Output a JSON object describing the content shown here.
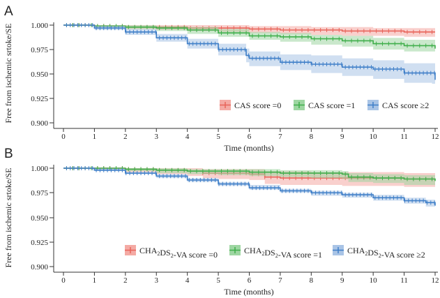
{
  "chart_data": [
    {
      "type": "line",
      "panel_label": "A",
      "xlabel": "Time (months)",
      "ylabel": "Free from ischemic srtoke/SE",
      "xlim": [
        0,
        12
      ],
      "ylim": [
        0.9,
        1.0
      ],
      "x_ticks": [
        "0",
        "1",
        "2",
        "3",
        "4",
        "5",
        "6",
        "7",
        "8",
        "9",
        "10",
        "11",
        "12"
      ],
      "y_ticks": [
        "0.900",
        "0.925",
        "0.950",
        "0.975",
        "1.000"
      ],
      "grid": false,
      "legend_placement": "bottom-right",
      "series": [
        {
          "name": "CAS score =0",
          "color": "#e8645a",
          "band_color": "#f4aaa4",
          "x": [
            0,
            1,
            2,
            3,
            4,
            5,
            6,
            7,
            8,
            9,
            10,
            11,
            12
          ],
          "y": [
            1.0,
            0.999,
            0.998,
            0.998,
            0.997,
            0.997,
            0.996,
            0.995,
            0.995,
            0.994,
            0.994,
            0.993,
            0.993
          ],
          "lower": [
            1.0,
            0.998,
            0.996,
            0.995,
            0.994,
            0.993,
            0.992,
            0.991,
            0.99,
            0.989,
            0.989,
            0.988,
            0.988
          ],
          "upper": [
            1.0,
            1.0,
            1.0,
            1.0,
            1.0,
            1.0,
            0.999,
            0.999,
            0.998,
            0.998,
            0.997,
            0.997,
            0.997
          ]
        },
        {
          "name": "CAS score =1",
          "color": "#3fae4a",
          "band_color": "#9ed6a2",
          "x": [
            0,
            1,
            2,
            3,
            4,
            5,
            6,
            7,
            8,
            9,
            10,
            11,
            12
          ],
          "y": [
            1.0,
            0.999,
            0.998,
            0.997,
            0.995,
            0.992,
            0.989,
            0.988,
            0.986,
            0.984,
            0.981,
            0.979,
            0.976
          ],
          "lower": [
            1.0,
            0.998,
            0.996,
            0.994,
            0.991,
            0.988,
            0.985,
            0.983,
            0.98,
            0.978,
            0.975,
            0.973,
            0.971
          ],
          "upper": [
            1.0,
            1.0,
            1.0,
            0.999,
            0.998,
            0.996,
            0.993,
            0.992,
            0.99,
            0.989,
            0.987,
            0.985,
            0.983
          ]
        },
        {
          "name": "CAS score ≥2",
          "color": "#3f7fc8",
          "band_color": "#a9c4e6",
          "x": [
            0,
            1,
            2,
            3,
            4,
            5,
            5.9,
            6,
            7,
            8,
            9,
            10,
            11,
            11.9,
            12
          ],
          "y": [
            1.0,
            0.997,
            0.993,
            0.987,
            0.981,
            0.975,
            0.969,
            0.966,
            0.962,
            0.96,
            0.957,
            0.955,
            0.951,
            0.951,
            0.944
          ],
          "lower": [
            1.0,
            0.995,
            0.99,
            0.983,
            0.976,
            0.969,
            0.962,
            0.958,
            0.954,
            0.951,
            0.948,
            0.945,
            0.941,
            0.94,
            0.934
          ],
          "upper": [
            1.0,
            0.999,
            0.996,
            0.991,
            0.986,
            0.981,
            0.976,
            0.973,
            0.97,
            0.969,
            0.966,
            0.964,
            0.961,
            0.961,
            0.955
          ]
        }
      ]
    },
    {
      "type": "line",
      "panel_label": "B",
      "xlabel": "Time (months)",
      "ylabel": "Free from ischemic srtoke/SE",
      "xlim": [
        0,
        12
      ],
      "ylim": [
        0.9,
        1.0
      ],
      "x_ticks": [
        "0",
        "1",
        "2",
        "3",
        "4",
        "5",
        "6",
        "7",
        "8",
        "9",
        "10",
        "11",
        "12"
      ],
      "y_ticks": [
        "0.900",
        "0.925",
        "0.950",
        "0.975",
        "1.000"
      ],
      "grid": false,
      "legend_placement": "bottom-right",
      "series": [
        {
          "name": "CHA2DS2-VA score =0",
          "color": "#e8645a",
          "band_color": "#f4aaa4",
          "x": [
            0,
            1,
            2,
            3,
            4,
            4.5,
            5,
            6,
            6.5,
            7,
            8,
            9,
            10,
            11,
            12
          ],
          "y": [
            1.0,
            1.0,
            0.999,
            0.998,
            0.997,
            0.995,
            0.995,
            0.994,
            0.991,
            0.99,
            0.99,
            0.99,
            0.99,
            0.989,
            0.989
          ],
          "lower": [
            1.0,
            0.999,
            0.996,
            0.994,
            0.992,
            0.99,
            0.989,
            0.988,
            0.984,
            0.983,
            0.983,
            0.982,
            0.982,
            0.981,
            0.981
          ],
          "upper": [
            1.0,
            1.0,
            1.0,
            1.0,
            1.0,
            0.999,
            0.999,
            0.999,
            0.997,
            0.997,
            0.996,
            0.996,
            0.996,
            0.995,
            0.995
          ]
        },
        {
          "name": "CHA2DS2-VA score =1",
          "color": "#3fae4a",
          "band_color": "#9ed6a2",
          "x": [
            0,
            1,
            2,
            3,
            4,
            5,
            6,
            7,
            8,
            9,
            9.2,
            10,
            11,
            12
          ],
          "y": [
            1.0,
            1.0,
            0.999,
            0.998,
            0.997,
            0.997,
            0.996,
            0.995,
            0.995,
            0.994,
            0.991,
            0.99,
            0.989,
            0.987
          ],
          "lower": [
            1.0,
            0.999,
            0.997,
            0.995,
            0.994,
            0.993,
            0.992,
            0.991,
            0.99,
            0.989,
            0.986,
            0.985,
            0.983,
            0.981
          ],
          "upper": [
            1.0,
            1.0,
            1.0,
            1.0,
            0.999,
            0.999,
            0.999,
            0.998,
            0.998,
            0.997,
            0.995,
            0.994,
            0.993,
            0.992
          ]
        },
        {
          "name": "CHA2DS2-VA score ≥2",
          "color": "#3f7fc8",
          "band_color": "#a9c4e6",
          "x": [
            0,
            1,
            2,
            3,
            4,
            5,
            6,
            7,
            8,
            9,
            10,
            11,
            11.7,
            12
          ],
          "y": [
            1.0,
            0.998,
            0.995,
            0.992,
            0.988,
            0.984,
            0.98,
            0.977,
            0.975,
            0.973,
            0.97,
            0.967,
            0.965,
            0.962
          ],
          "lower": [
            1.0,
            0.997,
            0.994,
            0.99,
            0.986,
            0.982,
            0.978,
            0.975,
            0.972,
            0.97,
            0.967,
            0.964,
            0.961,
            0.958
          ],
          "upper": [
            1.0,
            0.999,
            0.996,
            0.994,
            0.99,
            0.986,
            0.983,
            0.979,
            0.977,
            0.975,
            0.973,
            0.97,
            0.968,
            0.965
          ]
        }
      ]
    }
  ]
}
